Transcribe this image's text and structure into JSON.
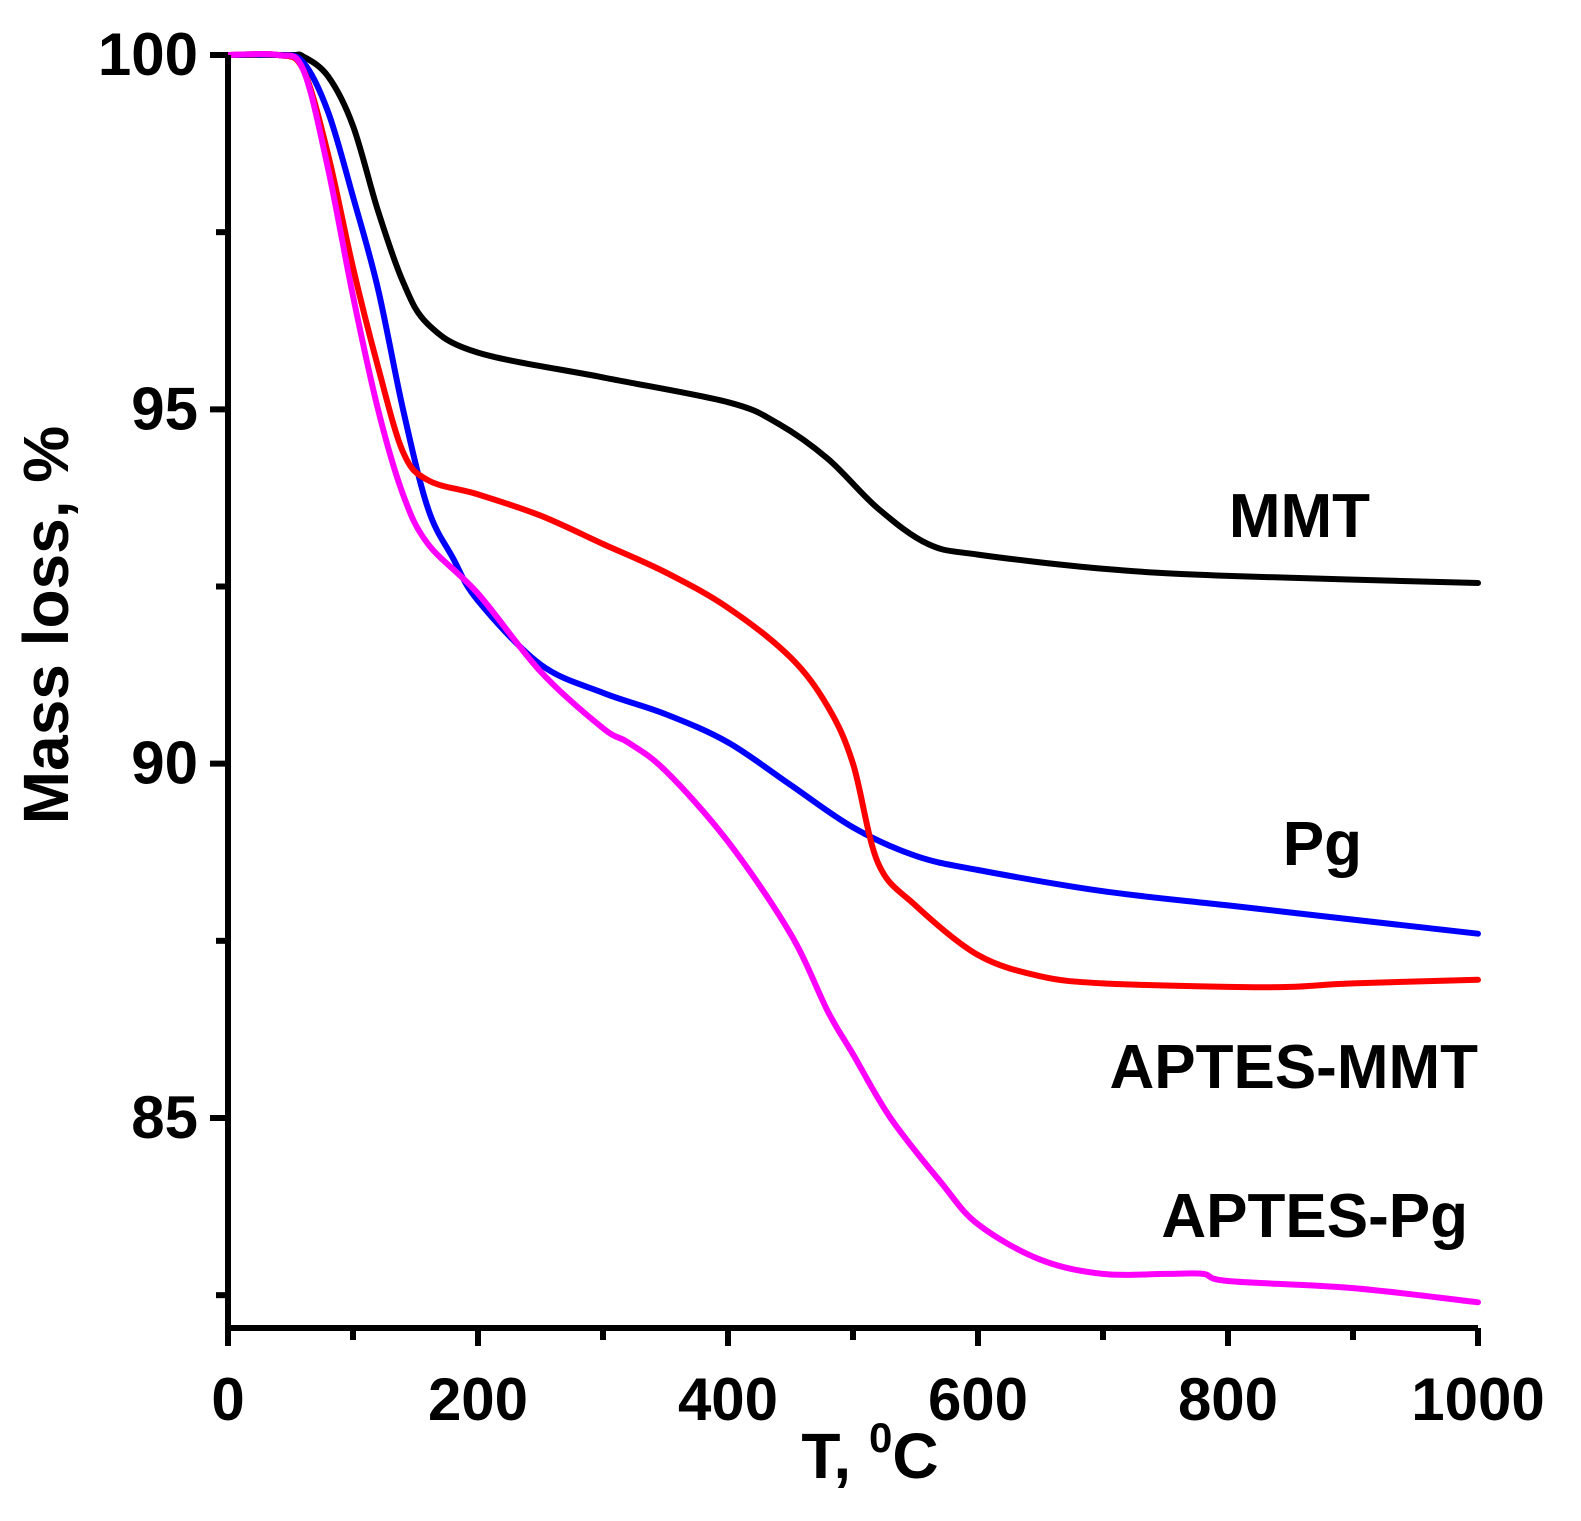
{
  "chart_data": {
    "type": "line",
    "title": "",
    "xlabel": "T, ",
    "xlabel_sup": "0",
    "xlabel_unit": "C",
    "ylabel": "Mass loss, %",
    "xlim": [
      0,
      1000
    ],
    "ylim": [
      82,
      100
    ],
    "x_ticks": [
      0,
      200,
      400,
      600,
      800,
      1000
    ],
    "x_tick_labels": [
      "0",
      "200",
      "400",
      "600",
      "800",
      "1000"
    ],
    "y_ticks": [
      85,
      90,
      95,
      100
    ],
    "y_tick_labels": [
      "85",
      "90",
      "95",
      "100"
    ],
    "grid": false,
    "series": [
      {
        "name": "MMT",
        "color": "#000000",
        "x": [
          0,
          50,
          60,
          80,
          100,
          120,
          140,
          160,
          200,
          300,
          400,
          440,
          480,
          520,
          560,
          600,
          700,
          800,
          1000
        ],
        "y": [
          100,
          100,
          99.98,
          99.7,
          99.0,
          97.8,
          96.8,
          96.2,
          95.8,
          95.45,
          95.1,
          94.8,
          94.3,
          93.6,
          93.1,
          92.95,
          92.75,
          92.65,
          92.55
        ]
      },
      {
        "name": "Pg",
        "color": "#0000ff",
        "x": [
          0,
          40,
          60,
          80,
          100,
          120,
          140,
          160,
          180,
          200,
          250,
          300,
          350,
          400,
          450,
          500,
          550,
          600,
          700,
          800,
          900,
          1000
        ],
        "y": [
          100,
          100,
          99.9,
          99.2,
          98.0,
          96.7,
          95.0,
          93.6,
          92.9,
          92.3,
          91.4,
          91.0,
          90.7,
          90.3,
          89.7,
          89.1,
          88.7,
          88.5,
          88.2,
          88.0,
          87.8,
          87.6
        ]
      },
      {
        "name": "APTES-MMT",
        "color": "#ff0000",
        "x": [
          0,
          40,
          60,
          80,
          100,
          120,
          140,
          160,
          200,
          250,
          300,
          350,
          400,
          450,
          480,
          500,
          520,
          550,
          600,
          650,
          700,
          800,
          850,
          900,
          1000
        ],
        "y": [
          100,
          100,
          99.8,
          98.6,
          97.0,
          95.6,
          94.4,
          94.0,
          93.8,
          93.5,
          93.1,
          92.7,
          92.2,
          91.5,
          90.8,
          90.0,
          88.6,
          88.0,
          87.3,
          87.0,
          86.9,
          86.85,
          86.85,
          86.9,
          86.95
        ]
      },
      {
        "name": "APTES-Pg",
        "color": "#ff00ff",
        "x": [
          0,
          40,
          60,
          80,
          100,
          120,
          140,
          160,
          200,
          250,
          300,
          320,
          350,
          400,
          450,
          480,
          500,
          530,
          570,
          600,
          650,
          700,
          750,
          780,
          800,
          900,
          1000
        ],
        "y": [
          100,
          100,
          99.8,
          98.4,
          96.6,
          95.0,
          93.8,
          93.1,
          92.4,
          91.3,
          90.5,
          90.3,
          89.9,
          88.9,
          87.6,
          86.5,
          85.9,
          85.0,
          84.1,
          83.5,
          83.0,
          82.8,
          82.8,
          82.8,
          82.7,
          82.6,
          82.4
        ]
      }
    ]
  }
}
